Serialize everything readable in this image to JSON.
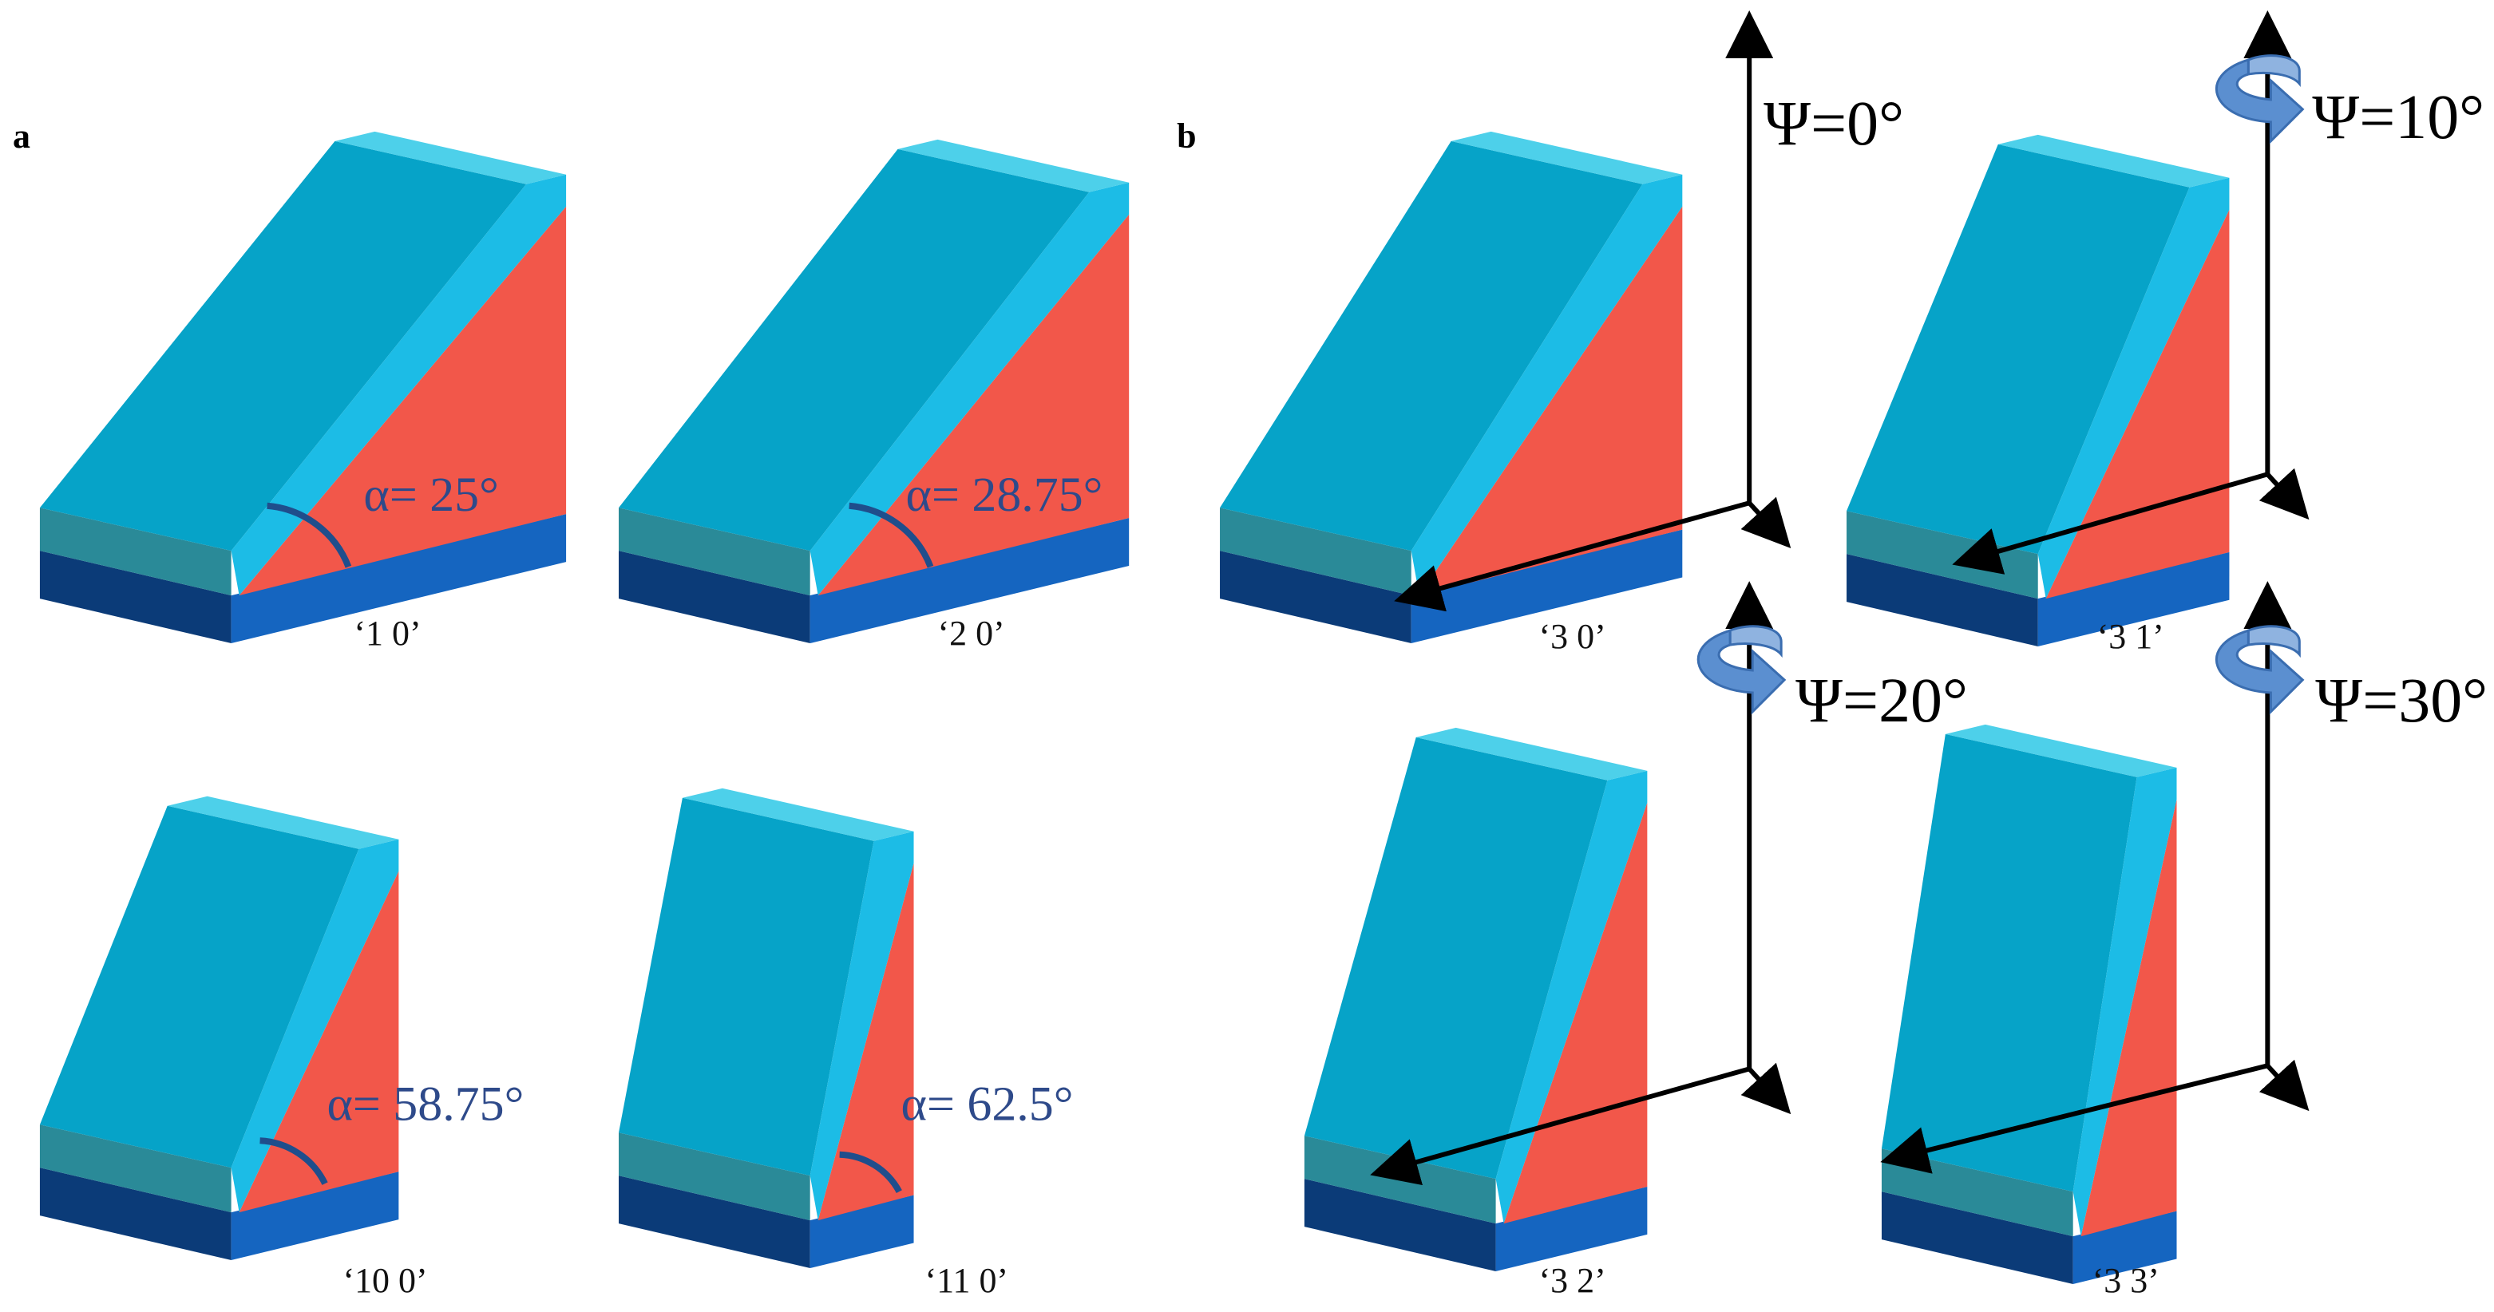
{
  "panels": [
    {
      "label": "a",
      "items": [
        {
          "angle": "α= 25°",
          "caption": "‘1 0’"
        },
        {
          "angle": "α= 28.75°",
          "caption": "‘2 0’"
        },
        {
          "angle": "α= 58.75°",
          "caption": "‘10 0’"
        },
        {
          "angle": "α= 62.5°",
          "caption": "‘11 0’"
        }
      ]
    },
    {
      "label": "b",
      "items": [
        {
          "psi": "Ψ=0°",
          "caption": "‘3 0’"
        },
        {
          "psi": "Ψ=10°",
          "caption": "‘3 1’"
        },
        {
          "psi": "Ψ=20°",
          "caption": "‘3 2’"
        },
        {
          "psi": "Ψ=30°",
          "caption": "‘3 3’"
        }
      ]
    }
  ]
}
